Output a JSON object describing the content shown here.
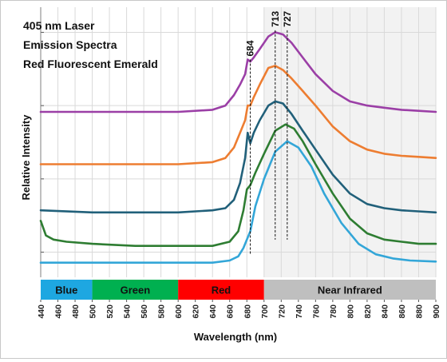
{
  "chart_data": {
    "type": "line",
    "title_lines": [
      "405 nm Laser",
      "Emission Spectra",
      "Red Fluorescent Emerald"
    ],
    "xlabel": "Wavelength (nm)",
    "ylabel": "Relative Intensity",
    "xlim": [
      440,
      900
    ],
    "x_ticks": [
      "440",
      "460",
      "480",
      "500",
      "520",
      "540",
      "560",
      "580",
      "600",
      "620",
      "640",
      "660",
      "680",
      "700",
      "720",
      "740",
      "760",
      "780",
      "800",
      "820",
      "840",
      "860",
      "880",
      "900"
    ],
    "grid": true,
    "shaded_region": {
      "from": 700,
      "to": 900,
      "color": "#f2f2f2"
    },
    "spectral_bands": [
      {
        "label": "Blue",
        "from": 440,
        "to": 500,
        "color": "#1ea7e1"
      },
      {
        "label": "Green",
        "from": 500,
        "to": 600,
        "color": "#00b050"
      },
      {
        "label": "Red",
        "from": 600,
        "to": 700,
        "color": "#ff0000"
      },
      {
        "label": "Near Infrared",
        "from": 700,
        "to": 900,
        "color": "#bfbfbf"
      }
    ],
    "peak_markers": [
      {
        "label": "684",
        "x": 684
      },
      {
        "label": "713",
        "x": 713
      },
      {
        "label": "727",
        "x": 727
      }
    ],
    "series": [
      {
        "color": "#9b3fa6",
        "x": [
          440,
          500,
          600,
          640,
          655,
          665,
          672,
          678,
          681,
          684,
          688,
          695,
          705,
          713,
          722,
          732,
          745,
          760,
          780,
          800,
          820,
          840,
          860,
          880,
          900
        ],
        "y": [
          0.67,
          0.67,
          0.67,
          0.68,
          0.7,
          0.75,
          0.8,
          0.85,
          0.92,
          0.91,
          0.93,
          0.97,
          1.03,
          1.05,
          1.04,
          1.0,
          0.93,
          0.85,
          0.77,
          0.72,
          0.7,
          0.69,
          0.68,
          0.675,
          0.67
        ]
      },
      {
        "color": "#ed7d31",
        "x": [
          440,
          500,
          600,
          640,
          655,
          665,
          672,
          678,
          681,
          684,
          688,
          695,
          705,
          713,
          722,
          732,
          745,
          760,
          780,
          800,
          820,
          840,
          860,
          880,
          900
        ],
        "y": [
          0.42,
          0.42,
          0.42,
          0.43,
          0.45,
          0.5,
          0.57,
          0.63,
          0.7,
          0.7,
          0.74,
          0.8,
          0.88,
          0.89,
          0.87,
          0.83,
          0.77,
          0.7,
          0.6,
          0.53,
          0.49,
          0.47,
          0.46,
          0.455,
          0.45
        ]
      },
      {
        "color": "#21607a",
        "x": [
          440,
          500,
          600,
          640,
          655,
          665,
          672,
          678,
          681,
          684,
          688,
          695,
          705,
          713,
          722,
          732,
          745,
          760,
          780,
          800,
          820,
          840,
          860,
          880,
          900
        ],
        "y": [
          0.2,
          0.19,
          0.19,
          0.2,
          0.21,
          0.25,
          0.33,
          0.45,
          0.57,
          0.52,
          0.57,
          0.63,
          0.7,
          0.72,
          0.71,
          0.66,
          0.58,
          0.49,
          0.37,
          0.28,
          0.23,
          0.21,
          0.2,
          0.195,
          0.19
        ]
      },
      {
        "color": "#2e7d32",
        "x": [
          440,
          446,
          455,
          470,
          500,
          550,
          600,
          640,
          660,
          670,
          676,
          680,
          684,
          690,
          700,
          713,
          725,
          735,
          745,
          760,
          780,
          800,
          820,
          840,
          860,
          880,
          900
        ],
        "y": [
          0.15,
          0.08,
          0.06,
          0.05,
          0.04,
          0.03,
          0.03,
          0.03,
          0.05,
          0.1,
          0.2,
          0.3,
          0.32,
          0.38,
          0.47,
          0.58,
          0.61,
          0.59,
          0.53,
          0.42,
          0.28,
          0.16,
          0.09,
          0.06,
          0.05,
          0.04,
          0.04
        ]
      },
      {
        "color": "#33a6d8",
        "x": [
          440,
          500,
          600,
          640,
          660,
          670,
          676,
          680,
          684,
          690,
          700,
          713,
          727,
          740,
          755,
          770,
          790,
          810,
          830,
          850,
          870,
          900
        ],
        "y": [
          -0.05,
          -0.05,
          -0.05,
          -0.05,
          -0.04,
          -0.02,
          0.02,
          0.06,
          0.1,
          0.22,
          0.35,
          0.48,
          0.53,
          0.5,
          0.41,
          0.28,
          0.14,
          0.04,
          -0.01,
          -0.03,
          -0.04,
          -0.045
        ]
      }
    ]
  }
}
